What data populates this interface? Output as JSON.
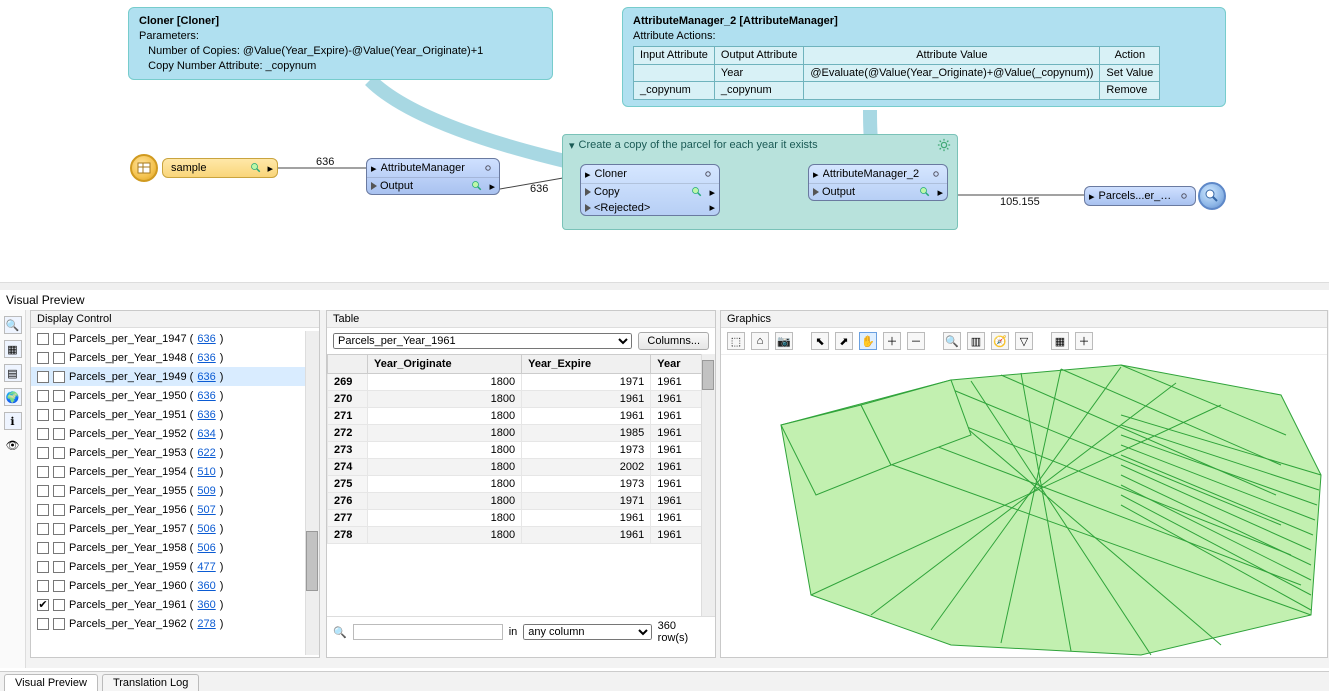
{
  "colors": {
    "bubble_bg": "#b0e0f0",
    "group_bg": "#b8e2dc",
    "node_blue_top": "#cfe0ff",
    "node_blue_bot": "#a9c2f0",
    "node_yellow_top": "#ffe8a8",
    "node_yellow_bot": "#f9d57a",
    "parcel_fill": "#c2f0b0",
    "parcel_stroke": "#2fa33a"
  },
  "canvas": {
    "cloner_bubble": {
      "title": "Cloner [Cloner]",
      "params_label": "Parameters:",
      "p1": "Number of Copies: @Value(Year_Expire)-@Value(Year_Originate)+1",
      "p2": "Copy Number Attribute: _copynum"
    },
    "am2_bubble": {
      "title": "AttributeManager_2 [AttributeManager]",
      "subtitle": "Attribute Actions:",
      "headers": [
        "Input Attribute",
        "Output Attribute",
        "Attribute Value",
        "Action"
      ],
      "rows": [
        [
          "",
          "Year",
          "@Evaluate(@Value(Year_Originate)+@Value(_copynum))",
          "Set Value"
        ],
        [
          "_copynum",
          "_copynum",
          "",
          "Remove"
        ]
      ]
    },
    "group_title": "Create a copy of the parcel for each year it exists",
    "reader": {
      "label": "sample"
    },
    "attr_mgr": {
      "title": "AttributeManager",
      "port_out": "Output"
    },
    "cloner": {
      "title": "Cloner",
      "port_copy": "Copy",
      "port_rej": "<Rejected>"
    },
    "attr_mgr2": {
      "title": "AttributeManager_2",
      "port_out": "Output"
    },
    "writer": {
      "label": "Parcels...er_Year"
    },
    "counts": {
      "reader_to_am": "636",
      "am_to_cloner": "636",
      "cloner_to_am2": "105.155",
      "am2_to_writer": "105.155"
    }
  },
  "visual_preview_label": "Visual Preview",
  "display_control": {
    "title": "Display Control",
    "items": [
      {
        "name": "Parcels_per_Year_1947",
        "count": "636",
        "checked": false,
        "selected": false
      },
      {
        "name": "Parcels_per_Year_1948",
        "count": "636",
        "checked": false,
        "selected": false
      },
      {
        "name": "Parcels_per_Year_1949",
        "count": "636",
        "checked": false,
        "selected": true
      },
      {
        "name": "Parcels_per_Year_1950",
        "count": "636",
        "checked": false,
        "selected": false
      },
      {
        "name": "Parcels_per_Year_1951",
        "count": "636",
        "checked": false,
        "selected": false
      },
      {
        "name": "Parcels_per_Year_1952",
        "count": "634",
        "checked": false,
        "selected": false
      },
      {
        "name": "Parcels_per_Year_1953",
        "count": "622",
        "checked": false,
        "selected": false
      },
      {
        "name": "Parcels_per_Year_1954",
        "count": "510",
        "checked": false,
        "selected": false
      },
      {
        "name": "Parcels_per_Year_1955",
        "count": "509",
        "checked": false,
        "selected": false
      },
      {
        "name": "Parcels_per_Year_1956",
        "count": "507",
        "checked": false,
        "selected": false
      },
      {
        "name": "Parcels_per_Year_1957",
        "count": "506",
        "checked": false,
        "selected": false
      },
      {
        "name": "Parcels_per_Year_1958",
        "count": "506",
        "checked": false,
        "selected": false
      },
      {
        "name": "Parcels_per_Year_1959",
        "count": "477",
        "checked": false,
        "selected": false
      },
      {
        "name": "Parcels_per_Year_1960",
        "count": "360",
        "checked": false,
        "selected": false
      },
      {
        "name": "Parcels_per_Year_1961",
        "count": "360",
        "checked": true,
        "selected": false
      },
      {
        "name": "Parcels_per_Year_1962",
        "count": "278",
        "checked": false,
        "selected": false
      }
    ]
  },
  "table": {
    "title": "Table",
    "selector_value": "Parcels_per_Year_1961",
    "columns_btn": "Columns...",
    "headers": [
      "Year_Originate",
      "Year_Expire",
      "Year"
    ],
    "rows": [
      {
        "n": "269",
        "a": "1800",
        "b": "1971",
        "c": "1961"
      },
      {
        "n": "270",
        "a": "1800",
        "b": "1961",
        "c": "1961"
      },
      {
        "n": "271",
        "a": "1800",
        "b": "1961",
        "c": "1961"
      },
      {
        "n": "272",
        "a": "1800",
        "b": "1985",
        "c": "1961"
      },
      {
        "n": "273",
        "a": "1800",
        "b": "1973",
        "c": "1961"
      },
      {
        "n": "274",
        "a": "1800",
        "b": "2002",
        "c": "1961"
      },
      {
        "n": "275",
        "a": "1800",
        "b": "1973",
        "c": "1961"
      },
      {
        "n": "276",
        "a": "1800",
        "b": "1971",
        "c": "1961"
      },
      {
        "n": "277",
        "a": "1800",
        "b": "1961",
        "c": "1961"
      },
      {
        "n": "278",
        "a": "1800",
        "b": "1961",
        "c": "1961"
      }
    ],
    "search_placeholder": "",
    "in_label": "in",
    "any_column": "any column",
    "row_count": "360 row(s)"
  },
  "graphics": {
    "title": "Graphics"
  },
  "tabs": {
    "visual_preview": "Visual Preview",
    "translation_log": "Translation Log"
  }
}
